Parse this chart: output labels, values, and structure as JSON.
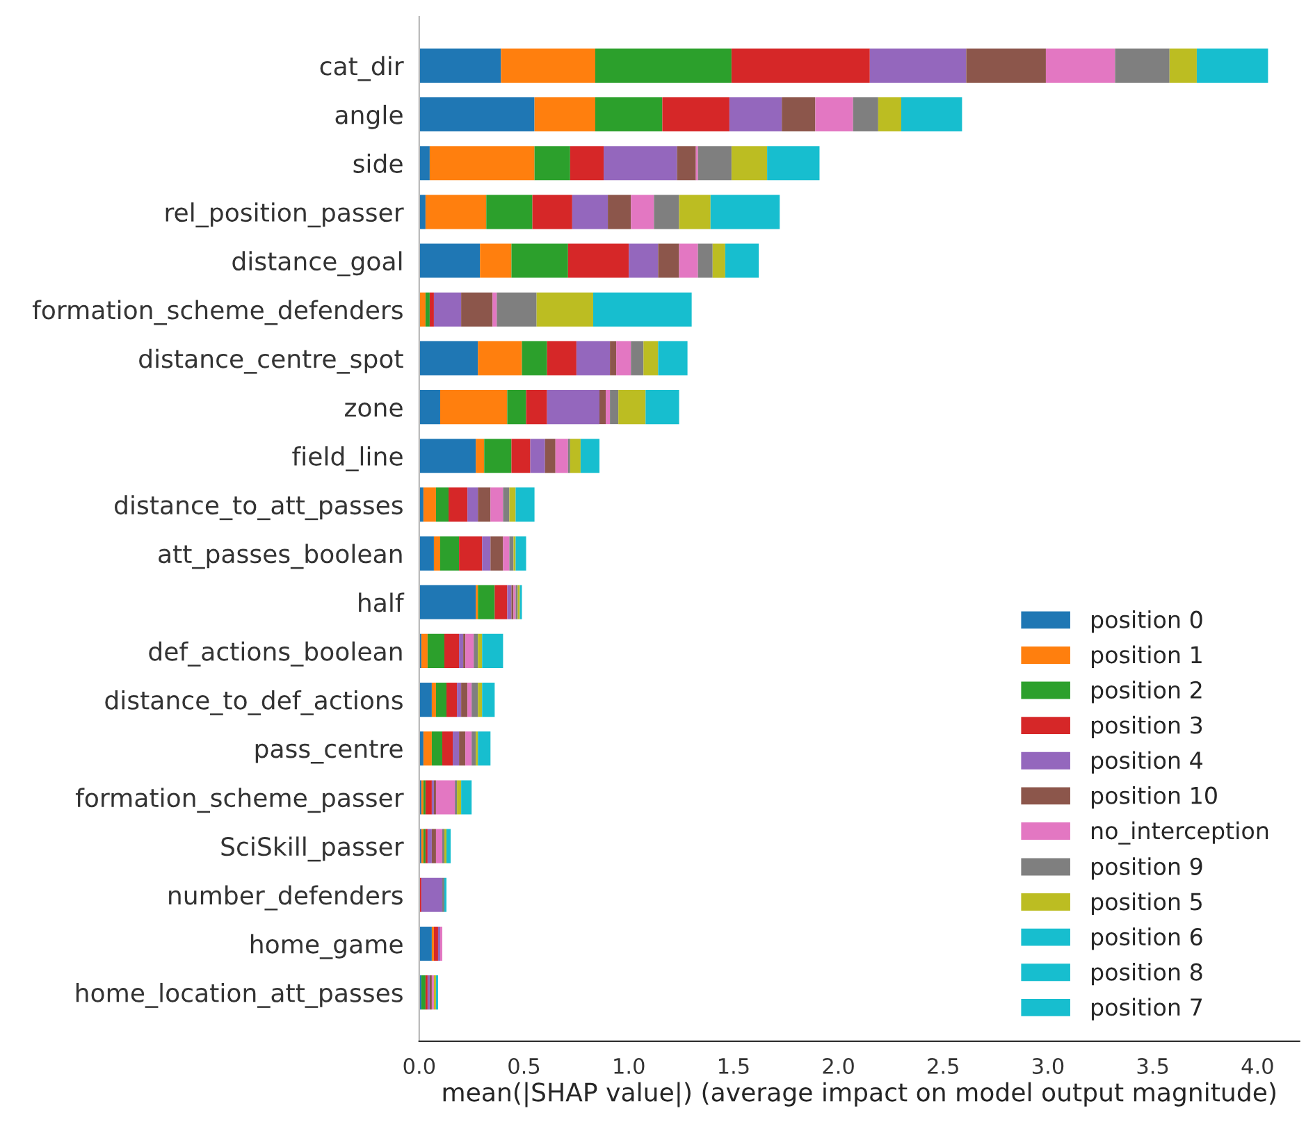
{
  "chart_data": {
    "type": "bar",
    "orientation": "horizontal",
    "stacked": true,
    "xlabel": "mean(|SHAP value|) (average impact on model output magnitude)",
    "categories": [
      "cat_dir",
      "angle",
      "side",
      "rel_position_passer",
      "distance_goal",
      "formation_scheme_defenders",
      "distance_centre_spot",
      "zone",
      "field_line",
      "distance_to_att_passes",
      "att_passes_boolean",
      "half",
      "def_actions_boolean",
      "distance_to_def_actions",
      "pass_centre",
      "formation_scheme_passer",
      "SciSkill_passer",
      "number_defenders",
      "home_game",
      "home_location_att_passes"
    ],
    "xlim": [
      0,
      4.2
    ],
    "xticks": [
      {
        "value": 0,
        "label": "0.0"
      },
      {
        "value": 0.5,
        "label": "0.5"
      },
      {
        "value": 1,
        "label": "1.0"
      },
      {
        "value": 1.5,
        "label": "1.5"
      },
      {
        "value": 2,
        "label": "2.0"
      },
      {
        "value": 2.5,
        "label": "2.5"
      },
      {
        "value": 3,
        "label": "3.0"
      },
      {
        "value": 3.5,
        "label": "3.5"
      },
      {
        "value": 4,
        "label": "4.0"
      }
    ],
    "legend": "bottom right",
    "grid": false,
    "series": [
      {
        "name": "position 0",
        "color": "#1f77b4",
        "values": [
          0.39,
          0.55,
          0.05,
          0.03,
          0.29,
          0,
          0.28,
          0.1,
          0.27,
          0.02,
          0.07,
          0.27,
          0.01,
          0.06,
          0.02,
          0.01,
          0.01,
          0,
          0.06,
          0.01
        ]
      },
      {
        "name": "position 1",
        "color": "#ff7f0e",
        "values": [
          0.45,
          0.29,
          0.5,
          0.29,
          0.15,
          0.03,
          0.21,
          0.32,
          0.04,
          0.06,
          0.03,
          0.01,
          0.03,
          0.02,
          0.04,
          0.01,
          0.01,
          0,
          0.01,
          0
        ]
      },
      {
        "name": "position 2",
        "color": "#2ca02c",
        "values": [
          0.65,
          0.32,
          0.17,
          0.22,
          0.27,
          0.02,
          0.12,
          0.09,
          0.13,
          0.06,
          0.09,
          0.08,
          0.08,
          0.05,
          0.05,
          0.01,
          0.01,
          0,
          0,
          0.02
        ]
      },
      {
        "name": "position 3",
        "color": "#d62728",
        "values": [
          0.66,
          0.32,
          0.16,
          0.19,
          0.29,
          0.02,
          0.14,
          0.1,
          0.09,
          0.09,
          0.11,
          0.06,
          0.07,
          0.05,
          0.05,
          0.03,
          0.01,
          0.01,
          0.02,
          0.01
        ]
      },
      {
        "name": "position 4",
        "color": "#9467bd",
        "values": [
          0.46,
          0.25,
          0.35,
          0.17,
          0.14,
          0.13,
          0.16,
          0.25,
          0.07,
          0.05,
          0.04,
          0.02,
          0.02,
          0.02,
          0.03,
          0.01,
          0.02,
          0.1,
          0.01,
          0.01
        ]
      },
      {
        "name": "position 10",
        "color": "#8c564b",
        "values": [
          0.38,
          0.16,
          0.09,
          0.11,
          0.1,
          0.15,
          0.03,
          0.03,
          0.05,
          0.06,
          0.06,
          0.01,
          0.01,
          0.03,
          0.03,
          0.01,
          0.02,
          0,
          0,
          0.01
        ]
      },
      {
        "name": "no_interception",
        "color": "#e377c2",
        "values": [
          0.33,
          0.18,
          0.01,
          0.11,
          0.09,
          0.02,
          0.07,
          0.02,
          0.06,
          0.06,
          0.03,
          0.01,
          0.04,
          0.02,
          0.03,
          0.09,
          0.03,
          0,
          0.01,
          0.01
        ]
      },
      {
        "name": "position 9",
        "color": "#7f7f7f",
        "values": [
          0.26,
          0.12,
          0.16,
          0.12,
          0.07,
          0.19,
          0.06,
          0.04,
          0.01,
          0.03,
          0.02,
          0.01,
          0.02,
          0.03,
          0.02,
          0.01,
          0.01,
          0.01,
          0,
          0
        ]
      },
      {
        "name": "position 5",
        "color": "#bcbd22",
        "values": [
          0.13,
          0.11,
          0.17,
          0.15,
          0.06,
          0.27,
          0.07,
          0.13,
          0.05,
          0.03,
          0.01,
          0.01,
          0.02,
          0.02,
          0.01,
          0.02,
          0.01,
          0,
          0,
          0.01
        ]
      },
      {
        "name": "position 6",
        "color": "#17becf",
        "values": [
          0.34,
          0.29,
          0.25,
          0.33,
          0.16,
          0.47,
          0.14,
          0.16,
          0.09,
          0.09,
          0.05,
          0.01,
          0.1,
          0.06,
          0.06,
          0.05,
          0.02,
          0.01,
          0,
          0.01
        ]
      },
      {
        "name": "position 8",
        "color": "#17becf",
        "values": [
          null,
          null,
          null,
          null,
          null,
          null,
          null,
          null,
          null,
          null,
          null,
          null,
          null,
          null,
          null,
          null,
          null,
          null,
          null,
          null
        ]
      },
      {
        "name": "position 7",
        "color": "#17becf",
        "values": [
          null,
          null,
          null,
          null,
          null,
          null,
          null,
          null,
          null,
          null,
          null,
          null,
          null,
          null,
          null,
          null,
          null,
          null,
          null,
          null
        ]
      }
    ]
  }
}
